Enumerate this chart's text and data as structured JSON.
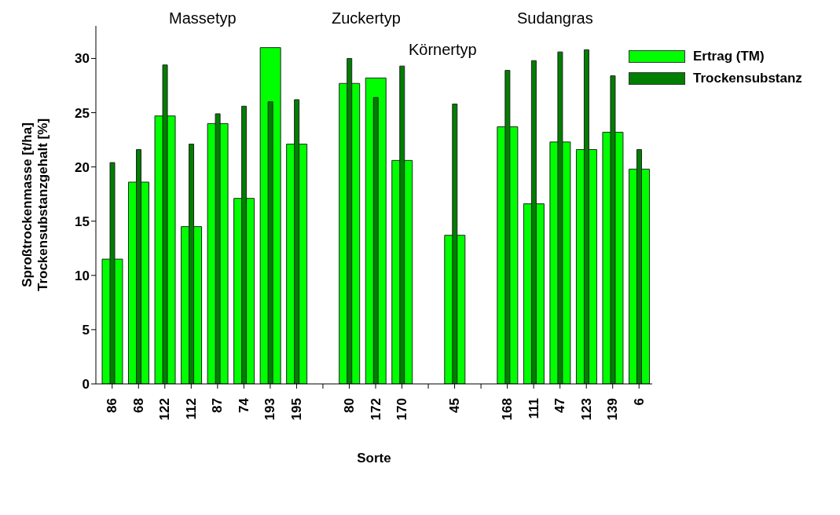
{
  "chart_data": {
    "type": "bar",
    "xlabel": "Sorte",
    "ylabel": "Sproßtrockenmasse [t/ha]\nTrockensubstanzgehalt [%]",
    "categories": [
      "86",
      "68",
      "122",
      "112",
      "87",
      "74",
      "193",
      "195",
      null,
      "80",
      "172",
      "170",
      null,
      "45",
      null,
      "168",
      "111",
      "47",
      "123",
      "139",
      "6"
    ],
    "series": [
      {
        "name": "Ertrag (TM)",
        "color": "#00ff00",
        "values": [
          11.5,
          18.6,
          24.7,
          14.5,
          24.0,
          17.1,
          31.0,
          22.1,
          null,
          27.7,
          28.2,
          20.6,
          null,
          13.7,
          null,
          23.7,
          16.6,
          22.3,
          21.6,
          23.2,
          19.8
        ]
      },
      {
        "name": "Trockensubstanz",
        "color": "#007f00",
        "values": [
          20.4,
          21.6,
          29.4,
          22.1,
          24.9,
          25.6,
          26.0,
          26.2,
          null,
          30.0,
          26.4,
          29.3,
          null,
          25.8,
          null,
          28.9,
          29.8,
          30.6,
          30.8,
          28.4,
          21.6
        ]
      }
    ],
    "annotations": [
      "Massetyp",
      "Zuckertyp",
      "Körnertyp",
      "Sudangras"
    ],
    "ylim": [
      0,
      33
    ],
    "yticks": [
      0,
      5,
      10,
      15,
      20,
      25,
      30
    ],
    "grid": false,
    "legend": "top right"
  }
}
